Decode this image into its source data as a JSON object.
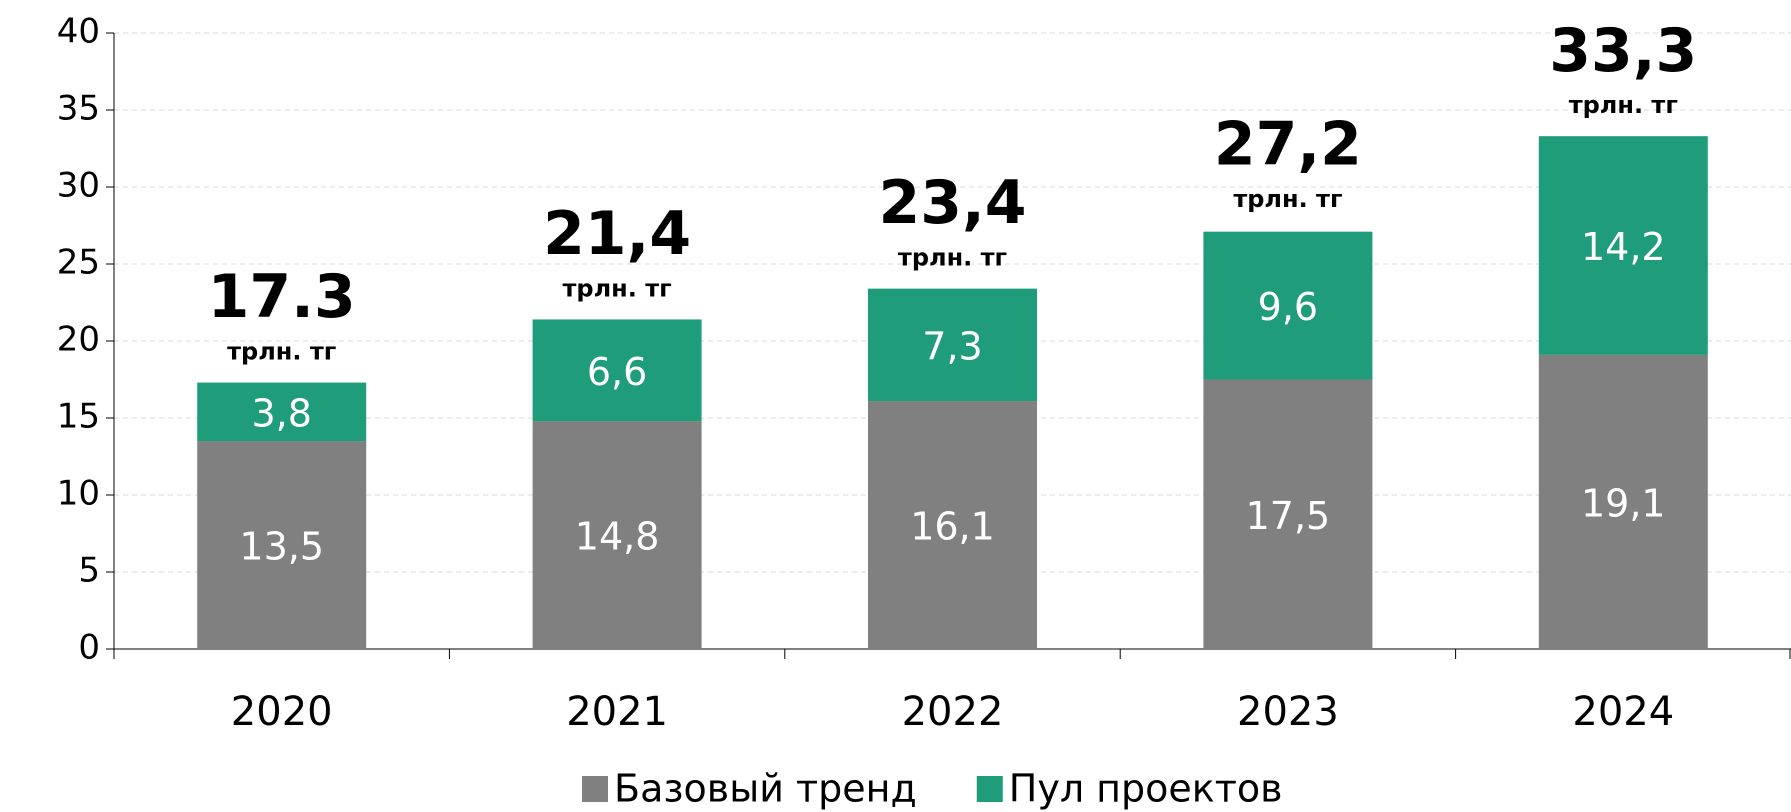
{
  "chart_data": {
    "type": "stacked_bar",
    "categories": [
      "2020",
      "2021",
      "2022",
      "2023",
      "2024"
    ],
    "series": [
      {
        "name": "Базовый тренд",
        "color": "#808080",
        "values": [
          13.5,
          14.8,
          16.1,
          17.5,
          19.1
        ],
        "value_labels": [
          "13,5",
          "14,8",
          "16,1",
          "17,5",
          "19,1"
        ]
      },
      {
        "name": "Пул проектов",
        "color": "#1f9c7a",
        "values": [
          3.8,
          6.6,
          7.3,
          9.6,
          14.2
        ],
        "value_labels": [
          "3,8",
          "6,6",
          "7,3",
          "9,6",
          "14,2"
        ]
      }
    ],
    "totals": [
      17.3,
      21.4,
      23.4,
      27.2,
      33.3
    ],
    "total_labels": [
      "17.3",
      "21,4",
      "23,4",
      "27,2",
      "33,3"
    ],
    "total_unit": "трлн. тг",
    "ylim": [
      0,
      40
    ],
    "yticks": [
      0,
      5,
      10,
      15,
      20,
      25,
      30,
      35,
      40
    ],
    "grid": true,
    "legend": "bottom"
  }
}
